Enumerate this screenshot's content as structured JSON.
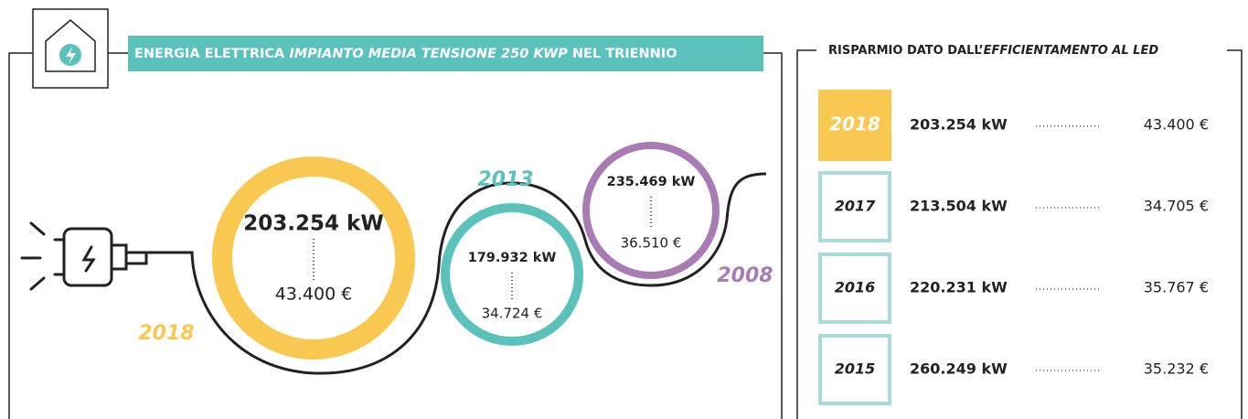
{
  "header": {
    "title_start": "ENERGIA ELETTRICA ",
    "title_italic": "IMPIANTO MEDIA TENSIONE 250 KWP",
    "title_end": " NEL TRIENNIO"
  },
  "circles": [
    {
      "energy": "203.254 kW",
      "cost": "43.400 €",
      "year": "2018"
    },
    {
      "energy": "179.932 kW",
      "cost": "34.724 €",
      "year": "2013"
    },
    {
      "energy": "235.469 kW",
      "cost": "36.510 €",
      "year": "2008"
    }
  ],
  "panel": {
    "title_start": "RISPARMIO DATO DALL’",
    "title_italic": "EFFICIENTAMENTO AL LED",
    "rows": [
      {
        "year": "2018",
        "energy": "203.254 kW",
        "cost": "43.400 €"
      },
      {
        "year": "2017",
        "energy": "213.504 kW",
        "cost": "34.705 €"
      },
      {
        "year": "2016",
        "energy": "220.231 kW",
        "cost": "35.767 €"
      },
      {
        "year": "2015",
        "energy": "260.249 kW",
        "cost": "35.232 €"
      }
    ]
  }
}
